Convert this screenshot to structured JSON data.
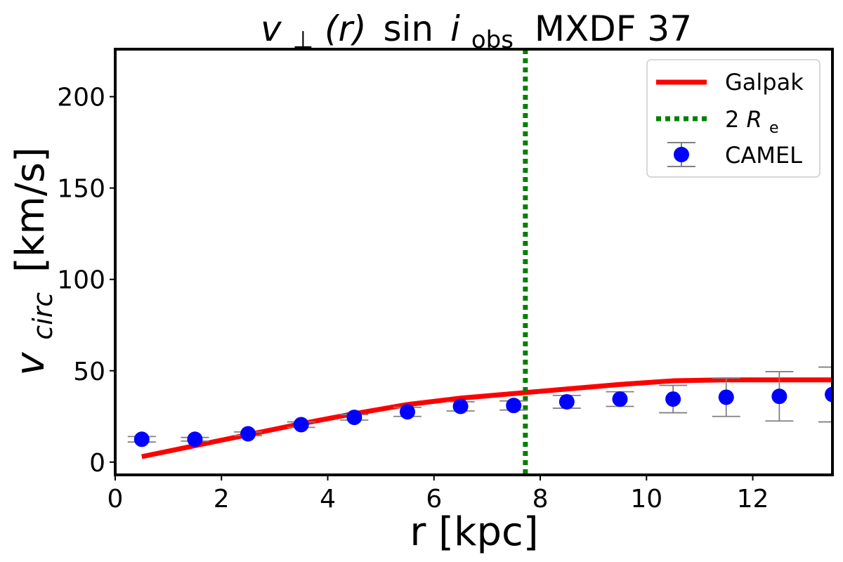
{
  "chart_data": {
    "type": "line",
    "title": {
      "prefix": "v",
      "perp": "⊥",
      "func": "(r)",
      "sin": "sin",
      "i": "i",
      "obs": "obs",
      "name": "MXDF 37"
    },
    "xlabel": "r [kpc]",
    "ylabel": {
      "main": "v",
      "sub": "circ",
      "unit": "[km/s]"
    },
    "xlim": [
      0,
      13.5
    ],
    "ylim": [
      -7,
      226
    ],
    "xticks": [
      0,
      2,
      4,
      6,
      8,
      10,
      12
    ],
    "yticks": [
      0,
      50,
      100,
      150,
      200
    ],
    "colors": {
      "galpak": "#ff0000",
      "re_line": "#008000",
      "camel": "#0000ff",
      "errorbar": "#808080",
      "frame": "#000000"
    },
    "series": [
      {
        "name": "Galpak",
        "kind": "line",
        "x": [
          0.5,
          1.5,
          2.5,
          3.5,
          4.5,
          5.5,
          6.5,
          7.5,
          8.5,
          9.5,
          10.5,
          11.5,
          12.5,
          13.5
        ],
        "y": [
          3,
          9,
          15,
          21,
          26.5,
          31.5,
          35,
          37.5,
          40,
          42.5,
          44.5,
          45,
          45,
          45
        ]
      },
      {
        "name": "CAMEL",
        "kind": "errorbar",
        "x": [
          0.5,
          1.5,
          2.5,
          3.5,
          4.5,
          5.5,
          6.5,
          7.5,
          8.5,
          9.5,
          10.5,
          11.5,
          12.5,
          13.5
        ],
        "y": [
          12.5,
          12.5,
          15.5,
          20.5,
          24.5,
          27.5,
          30.5,
          31,
          33,
          34.5,
          34.5,
          35.5,
          36,
          37
        ],
        "err": [
          1.5,
          1,
          1,
          1.5,
          1.5,
          2.5,
          2.5,
          2.5,
          3.5,
          4,
          7.5,
          10.5,
          13.5,
          15
        ]
      }
    ],
    "vline": {
      "name": "2R_e",
      "x": 7.72,
      "label_main": "2",
      "label_R": "R",
      "label_sub": "e"
    },
    "legend": {
      "position": "top-right",
      "entries": [
        "Galpak",
        "2R_e",
        "CAMEL"
      ]
    }
  }
}
